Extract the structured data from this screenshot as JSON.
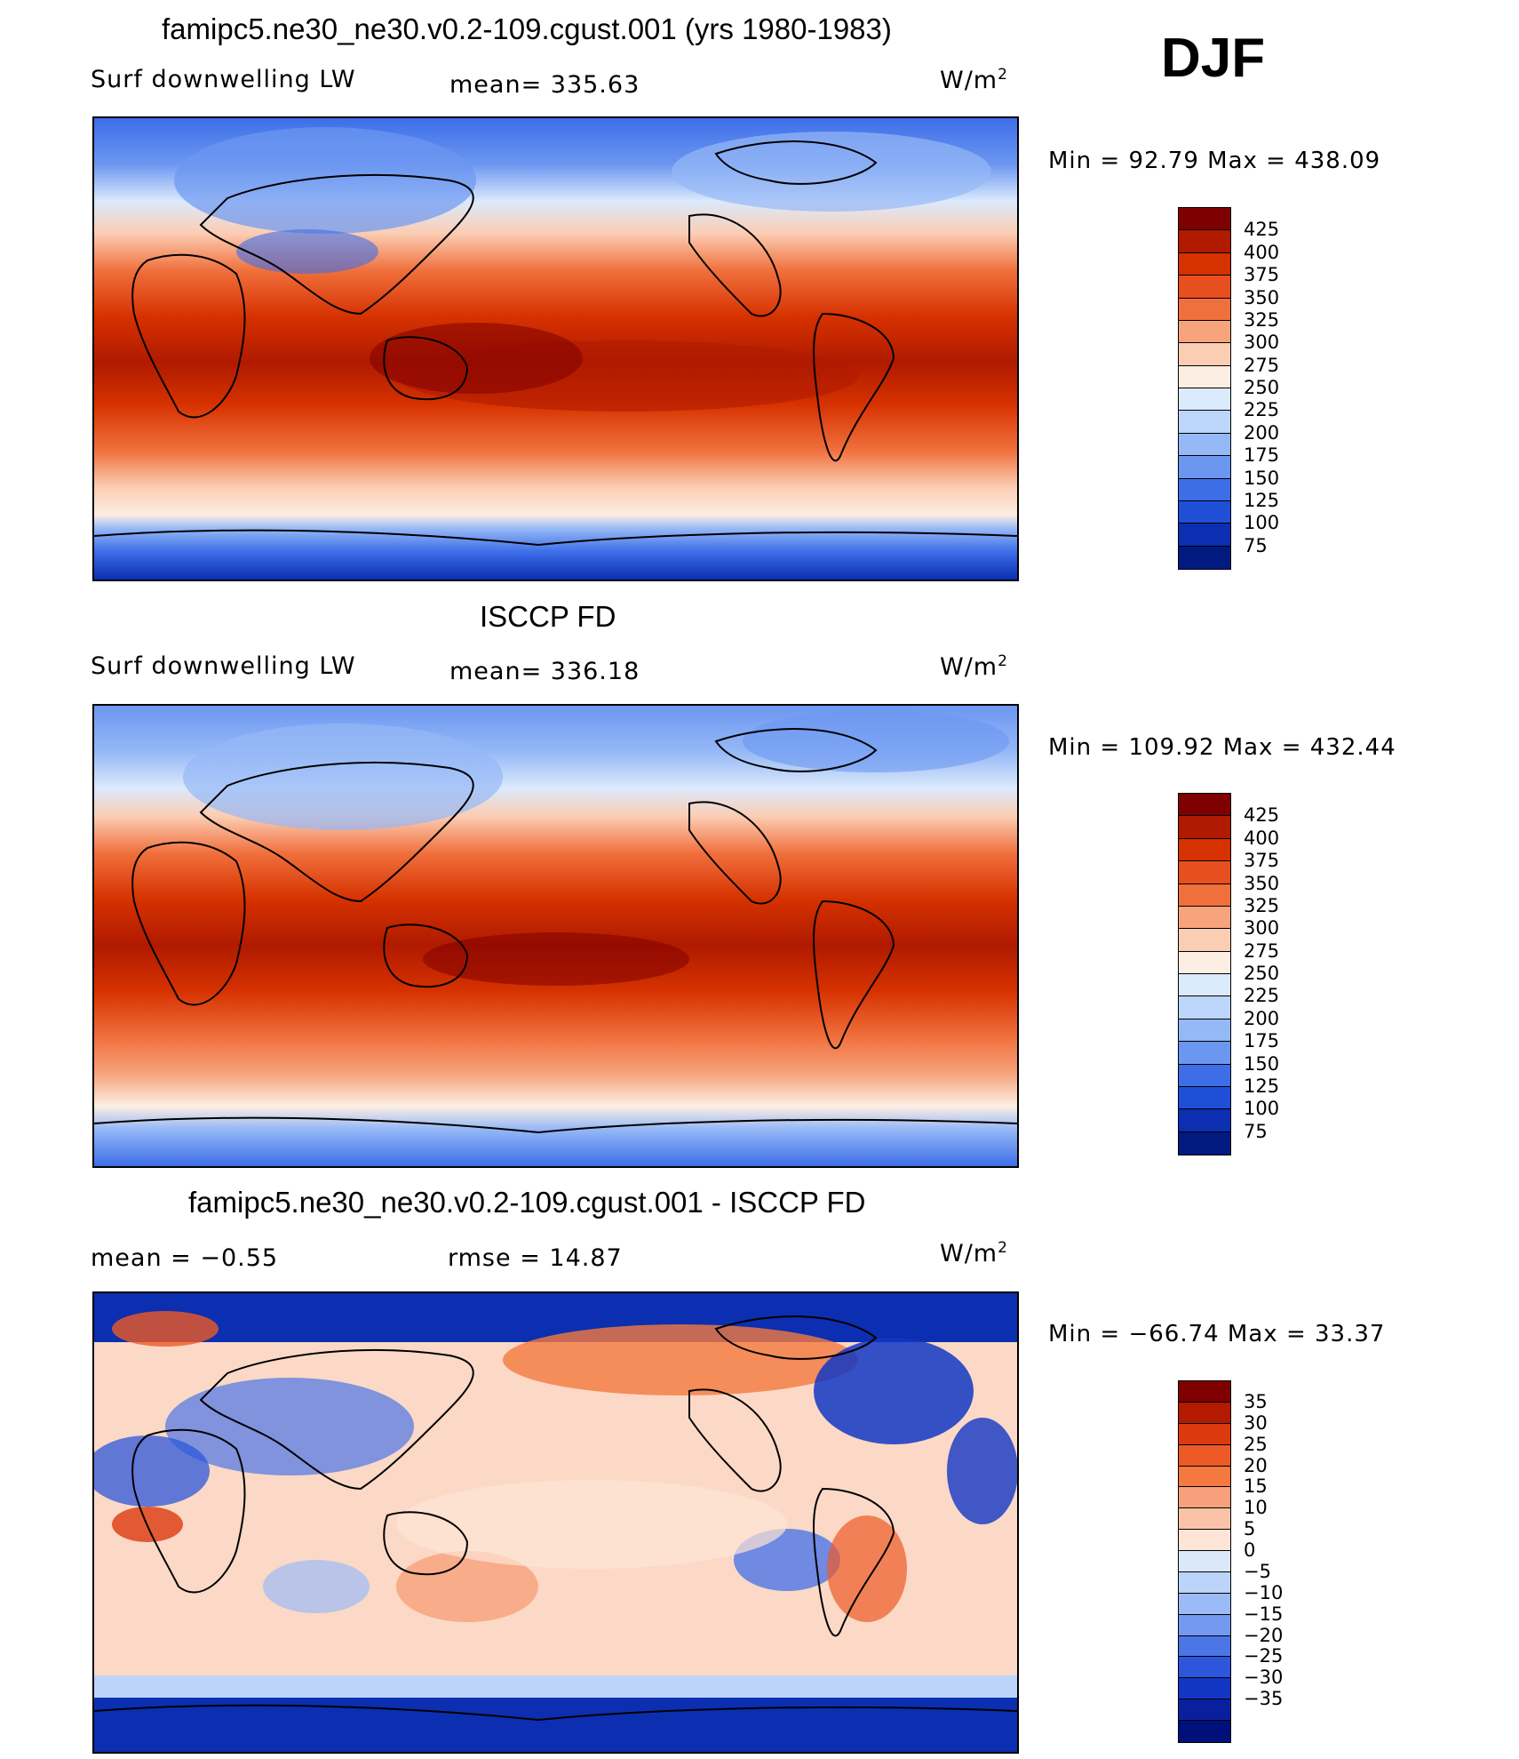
{
  "season": "DJF",
  "panels": [
    {
      "title": "famipc5.ne30_ne30.v0.2-109.cgust.001 (yrs 1980-1983)",
      "left_label": "Surf downwelling LW",
      "center_label": "mean= 335.63",
      "units": "W/m",
      "units_sup": "2",
      "minmax": "Min =  92.79 Max = 438.09",
      "colorbar_labels": [
        "425",
        "400",
        "375",
        "350",
        "325",
        "300",
        "275",
        "250",
        "225",
        "200",
        "175",
        "150",
        "125",
        "100",
        "75"
      ]
    },
    {
      "title": "ISCCP FD",
      "left_label": "Surf downwelling LW",
      "center_label": "mean= 336.18",
      "units": "W/m",
      "units_sup": "2",
      "minmax": "Min = 109.92 Max = 432.44",
      "colorbar_labels": [
        "425",
        "400",
        "375",
        "350",
        "325",
        "300",
        "275",
        "250",
        "225",
        "200",
        "175",
        "150",
        "125",
        "100",
        "75"
      ]
    },
    {
      "title": "famipc5.ne30_ne30.v0.2-109.cgust.001 - ISCCP FD",
      "left_label": "mean =   −0.55",
      "center_label": "rmse =   14.87",
      "units": "W/m",
      "units_sup": "2",
      "minmax": "Min = −66.74 Max =  33.37",
      "colorbar_labels": [
        "35",
        "30",
        "25",
        "20",
        "15",
        "10",
        "5",
        "0",
        "−5",
        "−10",
        "−15",
        "−20",
        "−25",
        "−30",
        "−35"
      ]
    }
  ],
  "colors": {
    "abs_scale": [
      "#7f0000",
      "#b01a00",
      "#d63200",
      "#e84f1e",
      "#f0703d",
      "#f7a47d",
      "#fbcdb3",
      "#fdeee3",
      "#dbeafc",
      "#bcd5fb",
      "#95b8f6",
      "#6c97f1",
      "#3d6ee8",
      "#1f4fd6",
      "#0b2fb0",
      "#001a80"
    ],
    "diff_scale": [
      "#7f0000",
      "#b41a00",
      "#dc3a0e",
      "#ee5a26",
      "#f4793f",
      "#f7a07b",
      "#fac3a7",
      "#fde4d6",
      "#dbe8fc",
      "#bcd3fa",
      "#9cbaf6",
      "#7499f0",
      "#4c75e6",
      "#2c56db",
      "#1236c4",
      "#0a1fa0",
      "#00107a"
    ]
  }
}
